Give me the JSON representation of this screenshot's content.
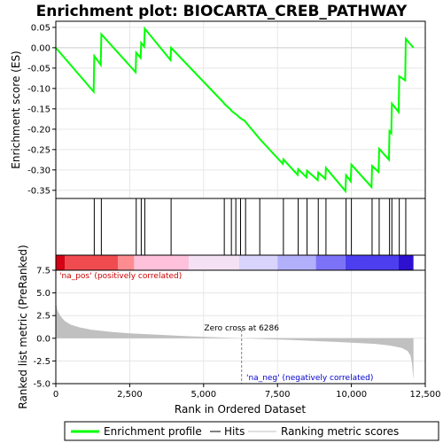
{
  "chart_data": {
    "type": "line",
    "title": "Enrichment plot: BIOCARTA_CREB_PATHWAY",
    "xlabel": "Rank in Ordered Dataset",
    "ylabel_top": "Enrichment score (ES)",
    "ylabel_bottom": "Ranked list metric (PreRanked)",
    "x_range": [
      0,
      12500
    ],
    "x_ticks": [
      "0",
      "2,500",
      "5,000",
      "7,500",
      "10,000",
      "12,500"
    ],
    "x_tick_values": [
      0,
      2500,
      5000,
      7500,
      10000,
      12500
    ],
    "es_ylim": [
      -0.37,
      0.065
    ],
    "es_ticks": [
      "0.05",
      "0.00",
      "-0.05",
      "-0.10",
      "-0.15",
      "-0.20",
      "-0.25",
      "-0.30",
      "-0.35"
    ],
    "es_tick_values": [
      0.05,
      0,
      -0.05,
      -0.1,
      -0.15,
      -0.2,
      -0.25,
      -0.3,
      -0.35
    ],
    "metric_ylim": [
      -5,
      7.5
    ],
    "metric_ticks": [
      "7.5",
      "5.0",
      "2.5",
      "0.0",
      "-2.5",
      "-5.0"
    ],
    "metric_tick_values": [
      7.5,
      5,
      2.5,
      0,
      -2.5,
      -5
    ],
    "enrichment_profile": {
      "x": [
        0,
        1280,
        1300,
        1520,
        1540,
        2700,
        2720,
        2870,
        2890,
        2990,
        3010,
        3880,
        3900,
        5680,
        5700,
        5920,
        5940,
        6070,
        6090,
        6230,
        6250,
        6400,
        6420,
        6880,
        6900,
        7680,
        7700,
        8180,
        8200,
        8480,
        8500,
        8860,
        8880,
        9120,
        9140,
        9800,
        9820,
        9980,
        10000,
        10680,
        10700,
        10920,
        10940,
        11270,
        11290,
        11350,
        11370,
        11600,
        11620,
        11820,
        11840,
        12100
      ],
      "y": [
        0.0,
        -0.108,
        -0.02,
        -0.042,
        0.033,
        -0.06,
        -0.012,
        -0.025,
        0.012,
        0.003,
        0.047,
        -0.03,
        0.0,
        -0.135,
        -0.138,
        -0.152,
        -0.155,
        -0.162,
        -0.163,
        -0.172,
        -0.173,
        -0.18,
        -0.182,
        -0.222,
        -0.224,
        -0.285,
        -0.274,
        -0.312,
        -0.298,
        -0.318,
        -0.302,
        -0.325,
        -0.306,
        -0.322,
        -0.295,
        -0.352,
        -0.313,
        -0.328,
        -0.287,
        -0.342,
        -0.29,
        -0.305,
        -0.248,
        -0.275,
        -0.205,
        -0.21,
        -0.137,
        -0.158,
        -0.07,
        -0.08,
        0.022,
        0.0
      ]
    },
    "hits": [
      1300,
      1540,
      2720,
      2890,
      3010,
      3900,
      5700,
      5940,
      6090,
      6250,
      6420,
      6900,
      7700,
      8200,
      8500,
      8880,
      9140,
      9820,
      10000,
      10700,
      10940,
      11290,
      11370,
      11620,
      11840
    ],
    "ranked_metric": {
      "x": [
        0,
        50,
        150,
        300,
        500,
        800,
        1200,
        1800,
        2500,
        3500,
        4500,
        5500,
        6286,
        7000,
        8000,
        9000,
        10000,
        10800,
        11300,
        11700,
        11900,
        12000,
        12050,
        12100
      ],
      "y": [
        4.0,
        3.1,
        2.5,
        1.9,
        1.5,
        1.2,
        0.95,
        0.72,
        0.55,
        0.38,
        0.22,
        0.1,
        0.0,
        -0.08,
        -0.2,
        -0.33,
        -0.48,
        -0.62,
        -0.8,
        -1.05,
        -1.4,
        -1.9,
        -2.8,
        -4.6
      ]
    },
    "heatmap_colors": [
      "#d40015",
      "#f04c50",
      "#fd8c90",
      "#fec1dc",
      "#f4e2f4",
      "#d8d4fb",
      "#b2b0fb",
      "#7c72f8",
      "#4d3fef",
      "#2e10d0"
    ],
    "heatmap_breaks": [
      0,
      300,
      2100,
      2650,
      4500,
      6200,
      7500,
      8800,
      9800,
      11600,
      12100
    ],
    "zero_cross_label": "Zero cross at 6286",
    "zero_cross_x": 6286,
    "pos_label": "'na_pos' (positively correlated)",
    "neg_label": "'na_neg' (negatively correlated)",
    "legend": [
      "Enrichment profile",
      "Hits",
      "Ranking metric scores"
    ],
    "colors": {
      "profile": "#00ff00",
      "hits": "#000000",
      "metric_fill": "#c0c0c0",
      "pos_label": "#cc0000",
      "neg_label": "#0000cc",
      "zero_line": "#808080"
    }
  }
}
